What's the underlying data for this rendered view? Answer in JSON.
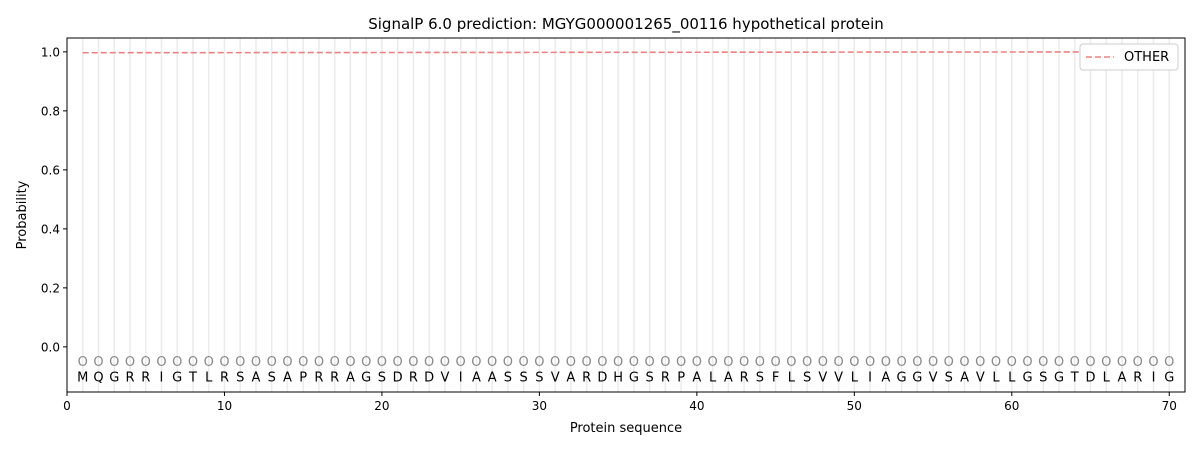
{
  "chart_data": {
    "type": "line",
    "title": "SignalP 6.0 prediction: MGYG000001265_00116 hypothetical protein",
    "xlabel": "Protein sequence",
    "ylabel": "Probability",
    "xlim": [
      0,
      71
    ],
    "ylim": [
      -0.153,
      1.047
    ],
    "xticks": [
      0,
      10,
      20,
      30,
      40,
      50,
      60,
      70
    ],
    "yticks": [
      0.0,
      0.2,
      0.4,
      0.6,
      0.8,
      1.0
    ],
    "ytick_labels": [
      "0.0",
      "0.2",
      "0.4",
      "0.6",
      "0.8",
      "1.0"
    ],
    "grid": "vertical lines at each residue",
    "legend_position": "top-right",
    "sequence": [
      "M",
      "Q",
      "G",
      "R",
      "R",
      "I",
      "G",
      "T",
      "L",
      "R",
      "S",
      "A",
      "S",
      "A",
      "P",
      "R",
      "R",
      "A",
      "G",
      "S",
      "D",
      "R",
      "D",
      "V",
      "I",
      "A",
      "A",
      "S",
      "S",
      "S",
      "V",
      "A",
      "R",
      "D",
      "H",
      "G",
      "S",
      "R",
      "P",
      "A",
      "L",
      "A",
      "R",
      "S",
      "F",
      "L",
      "S",
      "V",
      "V",
      "L",
      "I",
      "A",
      "G",
      "G",
      "V",
      "S",
      "A",
      "V",
      "L",
      "L",
      "G",
      "S",
      "G",
      "T",
      "D",
      "L",
      "A",
      "R",
      "I",
      "G"
    ],
    "region_label": "O",
    "series": [
      {
        "name": "OTHER",
        "color": "#f08080",
        "style": "dashed",
        "start_value": 0.997,
        "end_value": 1.0
      }
    ]
  }
}
